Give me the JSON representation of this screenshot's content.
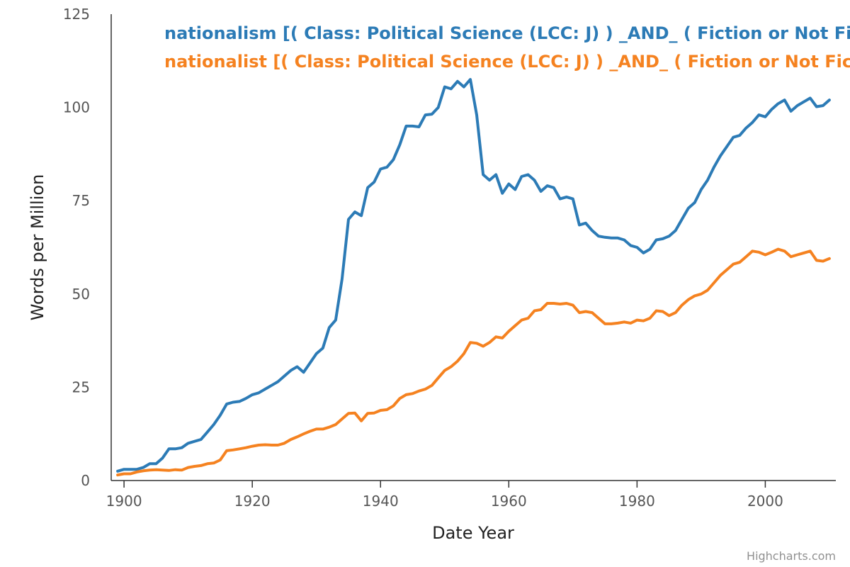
{
  "chart_data": {
    "type": "line",
    "title": "",
    "xlabel": "Date Year",
    "ylabel": "Words per Million",
    "xlim": [
      1898,
      2011
    ],
    "ylim": [
      0,
      125
    ],
    "x_ticks": [
      "1900",
      "1920",
      "1940",
      "1960",
      "1980",
      "2000"
    ],
    "y_ticks": [
      "0",
      "25",
      "50",
      "75",
      "100",
      "125"
    ],
    "grid": false,
    "legend_position": "top",
    "credits": "Highcharts.com",
    "series": [
      {
        "name": "nationalism [( Class: Political Science (LCC: J) ) _AND_ ( Fiction or Not Fiction: Not Fiction )]",
        "color": "#2c7bb6",
        "x_start": 1899,
        "values": [
          2.5,
          3,
          3,
          3,
          3.5,
          4.5,
          4.5,
          6,
          8.5,
          8.5,
          8.8,
          10,
          10.5,
          11,
          13,
          15,
          17.5,
          20.5,
          21,
          21.2,
          22,
          23,
          23.5,
          24.5,
          25.5,
          26.5,
          28,
          29.5,
          30.5,
          29,
          31.5,
          34,
          35.5,
          41,
          43,
          54,
          70,
          72,
          71,
          78.5,
          80,
          83.5,
          84,
          86,
          90,
          95,
          95,
          94.8,
          98,
          98.2,
          100,
          105.5,
          105,
          107,
          105.5,
          107.5,
          98,
          82,
          80.5,
          82,
          77,
          79.5,
          78,
          81.5,
          82,
          80.5,
          77.5,
          79,
          78.5,
          75.5,
          76,
          75.5,
          68.5,
          69,
          67,
          65.5,
          65.2,
          65,
          65,
          64.5,
          63,
          62.5,
          61,
          62,
          64.5,
          64.8,
          65.5,
          67,
          70,
          73,
          74.5,
          78,
          80.5,
          84,
          87,
          89.5,
          92,
          92.5,
          94.5,
          96,
          98,
          97.5,
          99.5,
          101,
          102,
          99,
          100.5,
          101.5,
          102.5,
          100.2,
          100.5,
          102
        ]
      },
      {
        "name": "nationalist [( Class: Political Science (LCC: J) ) _AND_ ( Fiction or Not Fiction: Not Fiction )]",
        "color": "#f58220",
        "x_start": 1899,
        "values": [
          1.5,
          1.8,
          1.8,
          2.3,
          2.6,
          2.8,
          2.9,
          2.8,
          2.7,
          2.9,
          2.8,
          3.5,
          3.8,
          4,
          4.5,
          4.7,
          5.5,
          8,
          8.2,
          8.5,
          8.8,
          9.2,
          9.5,
          9.6,
          9.5,
          9.5,
          10,
          11,
          11.7,
          12.5,
          13.2,
          13.8,
          13.8,
          14.3,
          15,
          16.5,
          18,
          18.1,
          16,
          18,
          18.1,
          18.8,
          19,
          20,
          22,
          23,
          23.3,
          24,
          24.5,
          25.5,
          27.5,
          29.5,
          30.5,
          32,
          34,
          37,
          36.8,
          36,
          37,
          38.5,
          38.2,
          40,
          41.5,
          43,
          43.5,
          45.5,
          45.8,
          47.5,
          47.5,
          47.3,
          47.5,
          47,
          45,
          45.3,
          45,
          43.5,
          42,
          42,
          42.2,
          42.5,
          42.2,
          43,
          42.8,
          43.5,
          45.5,
          45.3,
          44.2,
          45,
          47,
          48.5,
          49.5,
          50,
          51,
          53,
          55,
          56.5,
          58,
          58.5,
          60,
          61.5,
          61.2,
          60.5,
          61.2,
          62,
          61.5,
          60,
          60.5,
          61,
          61.5,
          59,
          58.8,
          59.5
        ]
      }
    ]
  }
}
